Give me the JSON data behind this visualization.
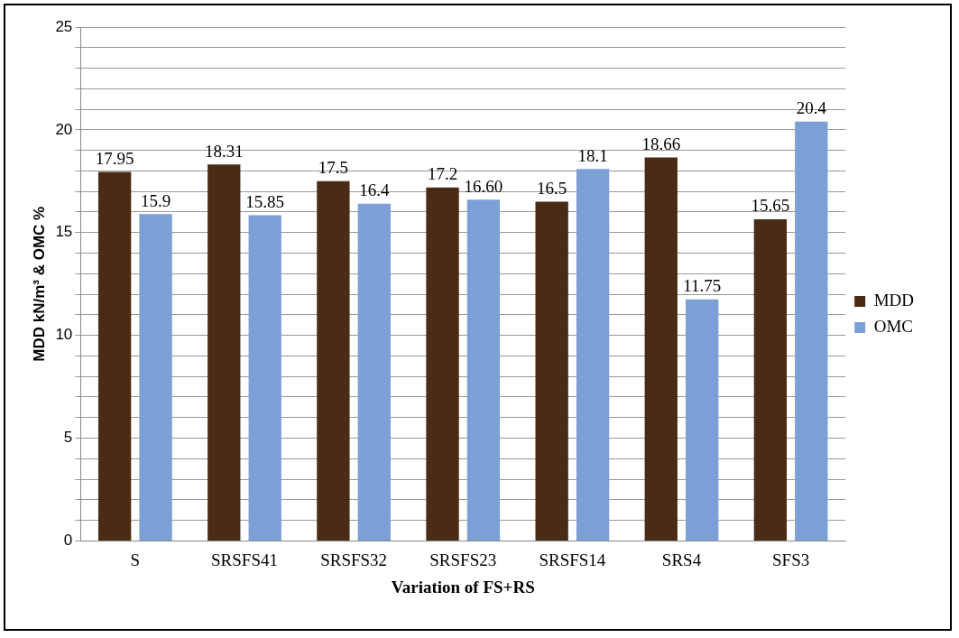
{
  "chart_data": {
    "type": "bar",
    "xlabel": "Variation of FS+RS",
    "ylabel": "MDD kN/m³ & OMC %",
    "categories": [
      "S",
      "SRSFS41",
      "SRSFS32",
      "SRSFS23",
      "SRSFS14",
      "SRS4",
      "SFS3"
    ],
    "series": [
      {
        "name": "MDD",
        "color": "#4a2c16",
        "values": [
          17.95,
          18.31,
          17.5,
          17.2,
          16.5,
          18.66,
          15.65
        ],
        "value_labels": [
          "17.95",
          "18.31",
          "17.5",
          "17.2",
          "16.5",
          "18.66",
          "15.65"
        ]
      },
      {
        "name": "OMC",
        "color": "#7c9fd6",
        "values": [
          15.9,
          15.85,
          16.4,
          16.6,
          18.1,
          11.75,
          20.4
        ],
        "value_labels": [
          "15.9",
          "15.85",
          "16.4",
          "16.60",
          "18.1",
          "11.75",
          "20.4"
        ]
      }
    ],
    "ylim": [
      0,
      25
    ],
    "yticks": [
      0,
      {
        "value": 1,
        "label": null
      },
      {
        "value": 2,
        "label": null
      },
      {
        "value": 3,
        "label": null
      },
      {
        "value": 4,
        "label": null
      },
      5,
      {
        "value": 6,
        "label": null
      },
      {
        "value": 7,
        "label": null
      },
      {
        "value": 8,
        "label": null
      },
      {
        "value": 9,
        "label": null
      },
      10,
      {
        "value": 11,
        "label": null
      },
      {
        "value": 12,
        "label": null
      },
      {
        "value": 13,
        "label": null
      },
      {
        "value": 14,
        "label": null
      },
      15,
      {
        "value": 16,
        "label": null
      },
      {
        "value": 17,
        "label": null
      },
      {
        "value": 18,
        "label": null
      },
      {
        "value": 19,
        "label": null
      },
      20,
      {
        "value": 21,
        "label": null
      },
      {
        "value": 22,
        "label": null
      },
      {
        "value": 23,
        "label": null
      },
      {
        "value": 24,
        "label": null
      },
      25
    ],
    "grid": "y",
    "legend": "right"
  }
}
